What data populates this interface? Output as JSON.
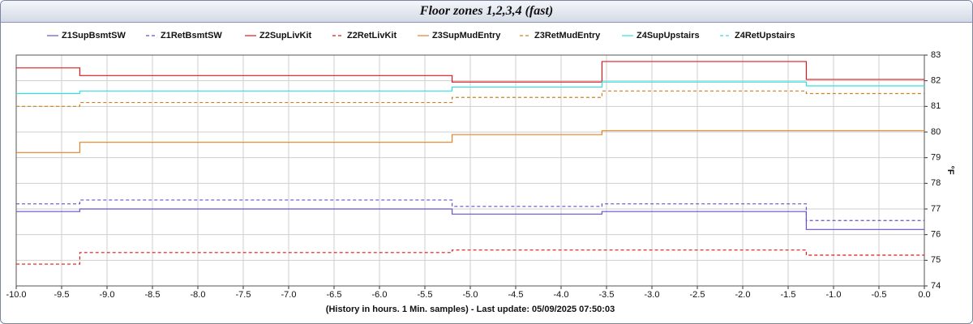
{
  "chart_data": {
    "type": "line",
    "step": "post",
    "title": "Floor zones 1,2,3,4 (fast)",
    "xlabel": "(History in hours. 1 Min. samples) - Last update: 05/09/2025 07:50:03",
    "ylabel": "°F",
    "x": [
      -10,
      -9.3,
      -5.2,
      -3.55,
      -1.3,
      0
    ],
    "xlim": [
      -10,
      0
    ],
    "xticks": [
      {
        "value": -10,
        "label": "-10.0"
      },
      -9.5,
      {
        "value": -9,
        "label": "-9.0"
      },
      -8.5,
      {
        "value": -8,
        "label": "-8.0"
      },
      -7.5,
      {
        "value": -7,
        "label": "-7.0"
      },
      -6.5,
      {
        "value": -6,
        "label": "-6.0"
      },
      -5.5,
      {
        "value": -5,
        "label": "-5.0"
      },
      -4.5,
      {
        "value": -4,
        "label": "-4.0"
      },
      -3.5,
      {
        "value": -3,
        "label": "-3.0"
      },
      -2.5,
      {
        "value": -2,
        "label": "-2.0"
      },
      -1.5,
      {
        "value": -1,
        "label": "-1.0"
      },
      -0.5,
      {
        "value": 0,
        "label": "0.0"
      }
    ],
    "ylim": [
      74,
      83
    ],
    "yticks": [
      74,
      75,
      76,
      77,
      78,
      79,
      80,
      81,
      82,
      83
    ],
    "grid": true,
    "legend": "top",
    "series": [
      {
        "name": "Z1SupBsmtSW",
        "color": "#6a4fd0",
        "dash": false,
        "values": [
          76.9,
          77.0,
          76.8,
          76.9,
          76.2,
          76.2
        ]
      },
      {
        "name": "Z1RetBsmtSW",
        "color": "#6a4fd0",
        "dash": true,
        "values": [
          77.2,
          77.35,
          77.1,
          77.2,
          76.55,
          76.55
        ]
      },
      {
        "name": "Z2SupLivKit",
        "color": "#e0181c",
        "dash": false,
        "values": [
          82.5,
          82.2,
          81.95,
          82.75,
          82.05,
          82.05
        ]
      },
      {
        "name": "Z2RetLivKit",
        "color": "#e0181c",
        "dash": true,
        "values": [
          74.85,
          75.3,
          75.4,
          75.4,
          75.2,
          75.2
        ]
      },
      {
        "name": "Z3SupMudEntry",
        "color": "#e88020",
        "dash": false,
        "values": [
          79.2,
          79.6,
          79.9,
          80.05,
          80.05,
          80.05
        ]
      },
      {
        "name": "Z3RetMudEntry",
        "color": "#d08020",
        "dash": true,
        "values": [
          81.0,
          81.15,
          81.35,
          81.6,
          81.5,
          81.5
        ]
      },
      {
        "name": "Z4SupUpstairs",
        "color": "#30e0e0",
        "dash": false,
        "values": [
          81.5,
          81.6,
          81.75,
          81.95,
          81.8,
          81.8
        ]
      },
      {
        "name": "Z4RetUpstairs",
        "color": "#30e0e0",
        "dash": true,
        "values": [
          null,
          null,
          null,
          null,
          null,
          null
        ]
      }
    ]
  }
}
